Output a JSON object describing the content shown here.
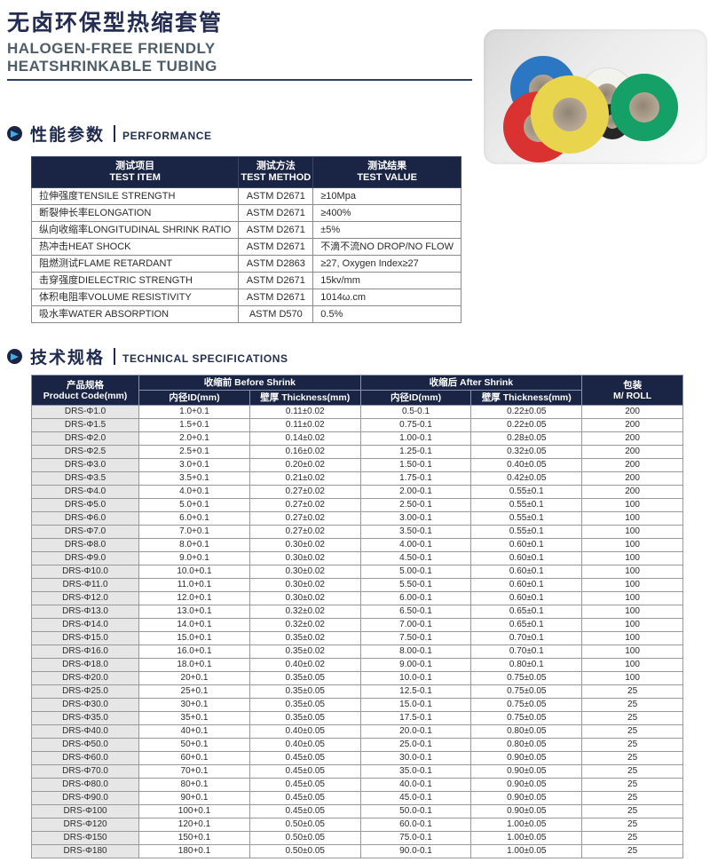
{
  "header": {
    "title_cn": "无卤环保型热缩套管",
    "subtitle_line1": "HALOGEN-FREE FRIENDLY",
    "subtitle_line2": "HEATSHRINKABLE TUBING"
  },
  "colors": {
    "navy_header": "#1a2444",
    "title_navy": "#242c52",
    "subtitle_gray": "#4e5d68",
    "accent_blue": "#49aadf",
    "first_col_gray": "#e6e6e6",
    "roll_red": "#da3230",
    "roll_blue": "#2b77c4",
    "roll_yellow": "#e8d44d",
    "roll_white": "#f3f3ee",
    "roll_black": "#262626",
    "roll_green": "#14a066"
  },
  "performance": {
    "section_title_cn": "性能参数",
    "section_title_en": "PERFORMANCE",
    "headers": [
      {
        "cn": "测试项目",
        "en": "TEST ITEM"
      },
      {
        "cn": "测试方法",
        "en": "TEST METHOD"
      },
      {
        "cn": "测试结果",
        "en": "TEST VALUE"
      }
    ],
    "rows": [
      [
        "拉伸强度TENSILE STRENGTH",
        "ASTM D2671",
        "≥10Mpa"
      ],
      [
        "断裂伸长率ELONGATION",
        "ASTM D2671",
        "≥400%"
      ],
      [
        "纵向收缩率LONGITUDINAL SHRINK RATIO",
        "ASTM D2671",
        "±5%"
      ],
      [
        "热冲击HEAT SHOCK",
        "ASTM D2671",
        "不滴不流NO DROP/NO FLOW"
      ],
      [
        "阻燃测试FLAME RETARDANT",
        "ASTM D2863",
        "≥27, Oxygen Index≥27"
      ],
      [
        "击穿强度DIELECTRIC STRENGTH",
        "ASTM D2671",
        "15kv/mm"
      ],
      [
        "体积电阻率VOLUME RESISTIVITY",
        "ASTM D2671",
        "1014ω.cm"
      ],
      [
        "吸水率WATER ABSORPTION",
        "ASTM D570",
        "0.5%"
      ]
    ]
  },
  "specs": {
    "section_title_cn": "技术规格",
    "section_title_en": "TECHNICAL SPECIFICATIONS",
    "header": {
      "product_cn": "产品规格",
      "product_en": "Product Code(mm)",
      "group_before": "收缩前 Before Shrink",
      "group_after": "收缩后 After Shrink",
      "pack_cn": "包装",
      "pack_en": "M/ ROLL"
    },
    "subheaders": [
      "内径ID(mm)",
      "壁厚 Thickness(mm)",
      "内径ID(mm)",
      "壁厚 Thickness(mm)"
    ],
    "rows": [
      [
        "DRS-Φ1.0",
        "1.0+0.1",
        "0.11±0.02",
        "0.5-0.1",
        "0.22±0.05",
        "200"
      ],
      [
        "DRS-Φ1.5",
        "1.5+0.1",
        "0.11±0.02",
        "0.75-0.1",
        "0.22±0.05",
        "200"
      ],
      [
        "DRS-Φ2.0",
        "2.0+0.1",
        "0.14±0.02",
        "1.00-0.1",
        "0.28±0.05",
        "200"
      ],
      [
        "DRS-Φ2.5",
        "2.5+0.1",
        "0.16±0.02",
        "1.25-0.1",
        "0.32±0.05",
        "200"
      ],
      [
        "DRS-Φ3.0",
        "3.0+0.1",
        "0.20±0.02",
        "1.50-0.1",
        "0.40±0.05",
        "200"
      ],
      [
        "DRS-Φ3.5",
        "3.5+0.1",
        "0.21±0.02",
        "1.75-0.1",
        "0.42±0.05",
        "200"
      ],
      [
        "DRS-Φ4.0",
        "4.0+0.1",
        "0.27±0.02",
        "2.00-0.1",
        "0.55±0.1",
        "200"
      ],
      [
        "DRS-Φ5.0",
        "5.0+0.1",
        "0.27±0.02",
        "2.50-0.1",
        "0.55±0.1",
        "100"
      ],
      [
        "DRS-Φ6.0",
        "6.0+0.1",
        "0.27±0.02",
        "3.00-0.1",
        "0.55±0.1",
        "100"
      ],
      [
        "DRS-Φ7.0",
        "7.0+0.1",
        "0.27±0.02",
        "3.50-0.1",
        "0.55±0.1",
        "100"
      ],
      [
        "DRS-Φ8.0",
        "8.0+0.1",
        "0.30±0.02",
        "4.00-0.1",
        "0.60±0.1",
        "100"
      ],
      [
        "DRS-Φ9.0",
        "9.0+0.1",
        "0.30±0.02",
        "4.50-0.1",
        "0.60±0.1",
        "100"
      ],
      [
        "DRS-Φ10.0",
        "10.0+0.1",
        "0.30±0.02",
        "5.00-0.1",
        "0.60±0.1",
        "100"
      ],
      [
        "DRS-Φ11.0",
        "11.0+0.1",
        "0.30±0.02",
        "5.50-0.1",
        "0.60±0.1",
        "100"
      ],
      [
        "DRS-Φ12.0",
        "12.0+0.1",
        "0.30±0.02",
        "6.00-0.1",
        "0.60±0.1",
        "100"
      ],
      [
        "DRS-Φ13.0",
        "13.0+0.1",
        "0.32±0.02",
        "6.50-0.1",
        "0.65±0.1",
        "100"
      ],
      [
        "DRS-Φ14.0",
        "14.0+0.1",
        "0.32±0.02",
        "7.00-0.1",
        "0.65±0.1",
        "100"
      ],
      [
        "DRS-Φ15.0",
        "15.0+0.1",
        "0.35±0.02",
        "7.50-0.1",
        "0.70±0.1",
        "100"
      ],
      [
        "DRS-Φ16.0",
        "16.0+0.1",
        "0.35±0.02",
        "8.00-0.1",
        "0.70±0.1",
        "100"
      ],
      [
        "DRS-Φ18.0",
        "18.0+0.1",
        "0.40±0.02",
        "9.00-0.1",
        "0.80±0.1",
        "100"
      ],
      [
        "DRS-Φ20.0",
        "20+0.1",
        "0.35±0.05",
        "10.0-0.1",
        "0.75±0.05",
        "100"
      ],
      [
        "DRS-Φ25.0",
        "25+0.1",
        "0.35±0.05",
        "12.5-0.1",
        "0.75±0.05",
        "25"
      ],
      [
        "DRS-Φ30.0",
        "30+0.1",
        "0.35±0.05",
        "15.0-0.1",
        "0.75±0.05",
        "25"
      ],
      [
        "DRS-Φ35.0",
        "35+0.1",
        "0.35±0.05",
        "17.5-0.1",
        "0.75±0.05",
        "25"
      ],
      [
        "DRS-Φ40.0",
        "40+0.1",
        "0.40±0.05",
        "20.0-0.1",
        "0.80±0.05",
        "25"
      ],
      [
        "DRS-Φ50.0",
        "50+0.1",
        "0.40±0.05",
        "25.0-0.1",
        "0.80±0.05",
        "25"
      ],
      [
        "DRS-Φ60.0",
        "60+0.1",
        "0.45±0.05",
        "30.0-0.1",
        "0.90±0.05",
        "25"
      ],
      [
        "DRS-Φ70.0",
        "70+0.1",
        "0.45±0.05",
        "35.0-0.1",
        "0.90±0.05",
        "25"
      ],
      [
        "DRS-Φ80.0",
        "80+0.1",
        "0.45±0.05",
        "40.0-0.1",
        "0.90±0.05",
        "25"
      ],
      [
        "DRS-Φ90.0",
        "90+0.1",
        "0.45±0.05",
        "45.0-0.1",
        "0.90±0.05",
        "25"
      ],
      [
        "DRS-Φ100",
        "100+0.1",
        "0.45±0.05",
        "50.0-0.1",
        "0.90±0.05",
        "25"
      ],
      [
        "DRS-Φ120",
        "120+0.1",
        "0.50±0.05",
        "60.0-0.1",
        "1.00±0.05",
        "25"
      ],
      [
        "DRS-Φ150",
        "150+0.1",
        "0.50±0.05",
        "75.0-0.1",
        "1.00±0.05",
        "25"
      ],
      [
        "DRS-Φ180",
        "180+0.1",
        "0.50±0.05",
        "90.0-0.1",
        "1.00±0.05",
        "25"
      ]
    ]
  },
  "photo": {
    "description": "heat-shrink tubing rolls",
    "roll_colors": [
      "blue",
      "white",
      "red",
      "black",
      "green",
      "yellow"
    ]
  }
}
